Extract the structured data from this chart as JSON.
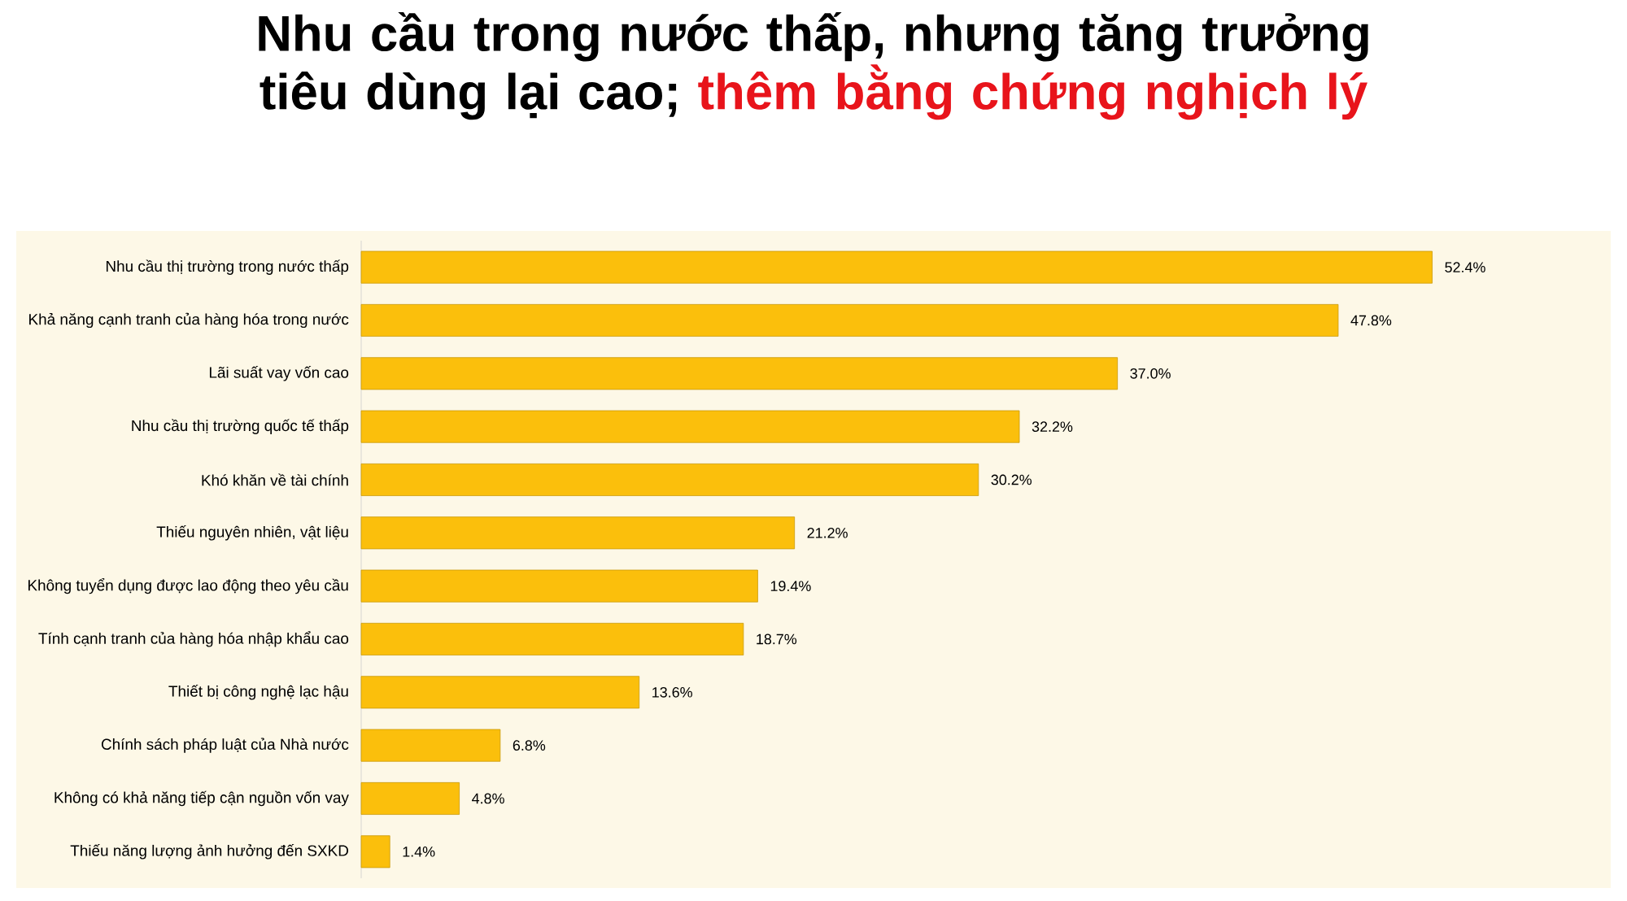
{
  "chart_data": {
    "type": "bar",
    "orientation": "horizontal",
    "title": "Nhu cầu trong nước thấp, nhưng tăng trưởng tiêu dùng lại cao;",
    "subtitle": "thêm bằng chứng nghịch lý",
    "categories": [
      "Nhu cầu thị trường trong nước thấp",
      "Khả năng cạnh tranh của hàng hóa trong nước",
      "Lãi suất vay vốn cao",
      "Nhu cầu thị trường quốc tế thấp",
      "Khó khăn về tài chính",
      "Thiếu nguyên nhiên, vật liệu",
      "Không tuyển dụng được lao động theo yêu cầu",
      "Tính cạnh tranh của hàng hóa nhập khẩu cao",
      "Thiết bị công nghệ lạc hậu",
      "Chính sách pháp luật của Nhà nước",
      "Không có khả năng tiếp cận nguồn vốn vay",
      "Thiếu năng lượng ảnh hưởng đến SXKD"
    ],
    "values": [
      52.4,
      47.8,
      37.0,
      32.2,
      30.2,
      21.2,
      19.4,
      18.7,
      13.6,
      6.8,
      4.8,
      1.4
    ],
    "value_labels": [
      "52.4%",
      "47.8%",
      "37.0%",
      "32.2%",
      "30.2%",
      "21.2%",
      "19.4%",
      "18.7%",
      "13.6%",
      "6.8%",
      "4.8%",
      "1.4%"
    ],
    "color": "#fbbf0c"
  }
}
